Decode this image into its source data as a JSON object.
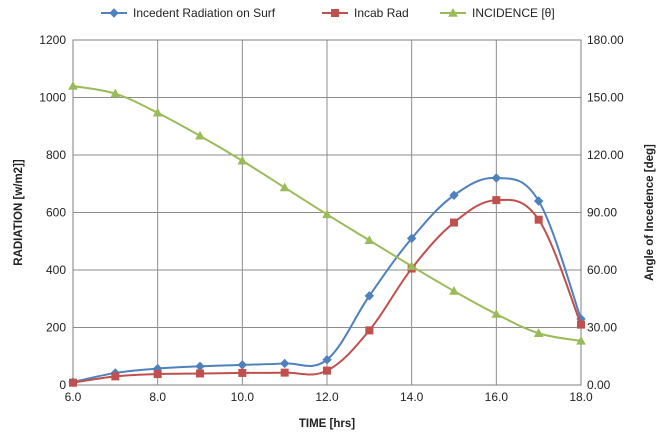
{
  "chart_data": {
    "type": "line",
    "title": "",
    "xlabel": "TIME [hrs]",
    "ylabel_left": "RADIATION [w/m2]]",
    "ylabel_right": "Angle of Incedence [deg]",
    "xlim": [
      6,
      18
    ],
    "ylim_left": [
      0,
      1200
    ],
    "ylim_right": [
      0,
      180
    ],
    "x_ticks": [
      "6.0",
      "8.0",
      "10.0",
      "12.0",
      "14.0",
      "16.0",
      "18.0"
    ],
    "y_ticks_left": [
      "0",
      "200",
      "400",
      "600",
      "800",
      "1000",
      "1200"
    ],
    "y_ticks_right": [
      "0.00",
      "30.00",
      "60.00",
      "90.00",
      "120.00",
      "150.00",
      "180.00"
    ],
    "grid": true,
    "legend_position": "top",
    "x": [
      6,
      7,
      8,
      9,
      10,
      11,
      12,
      13,
      14,
      15,
      16,
      17,
      18
    ],
    "series": [
      {
        "name": "Incedent Radiation on Surf",
        "axis": "left",
        "color": "#4f81bd",
        "marker": "diamond",
        "values": [
          10,
          42,
          57,
          65,
          70,
          75,
          88,
          310,
          510,
          660,
          720,
          640,
          230
        ]
      },
      {
        "name": "Incab Rad",
        "axis": "left",
        "color": "#c0504d",
        "marker": "square",
        "values": [
          8,
          30,
          38,
          40,
          42,
          43,
          50,
          190,
          405,
          565,
          643,
          575,
          210
        ]
      },
      {
        "name": "INCIDENCE [θ]",
        "axis": "right",
        "color": "#9bbb59",
        "marker": "triangle",
        "values": [
          156,
          152,
          142,
          130,
          117,
          103,
          89,
          75.5,
          62,
          49,
          37,
          27,
          23
        ]
      }
    ]
  }
}
